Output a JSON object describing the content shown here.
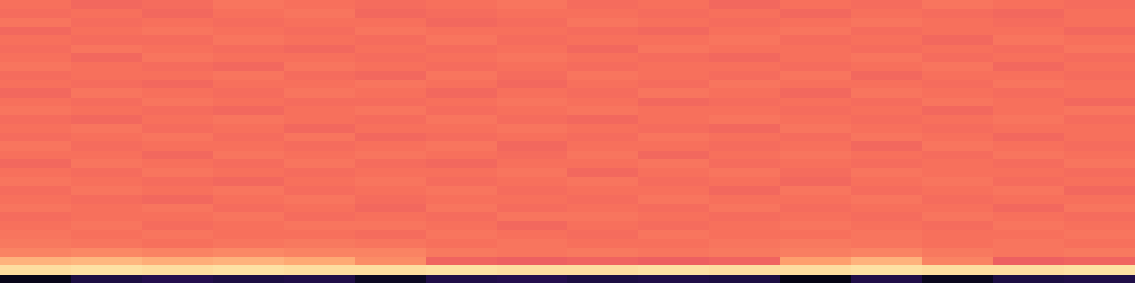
{
  "chart_data": {
    "type": "heatmap",
    "tick_labels": false,
    "zlim": [
      0,
      1
    ],
    "cells": [
      [
        0.7,
        0.68,
        0.69,
        0.71,
        0.7,
        0.69,
        0.7,
        0.71,
        0.69,
        0.7,
        0.68,
        0.7,
        0.69,
        0.71,
        0.7,
        0.69
      ],
      [
        0.69,
        0.7,
        0.68,
        0.7,
        0.71,
        0.68,
        0.69,
        0.7,
        0.7,
        0.69,
        0.7,
        0.68,
        0.7,
        0.69,
        0.68,
        0.7
      ],
      [
        0.71,
        0.69,
        0.7,
        0.69,
        0.7,
        0.7,
        0.68,
        0.69,
        0.71,
        0.7,
        0.69,
        0.7,
        0.71,
        0.7,
        0.69,
        0.7
      ],
      [
        0.68,
        0.7,
        0.71,
        0.7,
        0.69,
        0.71,
        0.7,
        0.7,
        0.69,
        0.68,
        0.7,
        0.71,
        0.69,
        0.7,
        0.7,
        0.68
      ],
      [
        0.7,
        0.69,
        0.69,
        0.71,
        0.7,
        0.69,
        0.71,
        0.69,
        0.7,
        0.7,
        0.71,
        0.69,
        0.7,
        0.68,
        0.71,
        0.7
      ],
      [
        0.69,
        0.71,
        0.7,
        0.69,
        0.68,
        0.7,
        0.69,
        0.7,
        0.68,
        0.71,
        0.7,
        0.7,
        0.69,
        0.7,
        0.69,
        0.71
      ],
      [
        0.7,
        0.68,
        0.71,
        0.7,
        0.7,
        0.69,
        0.7,
        0.71,
        0.7,
        0.69,
        0.68,
        0.7,
        0.71,
        0.69,
        0.7,
        0.69
      ],
      [
        0.71,
        0.7,
        0.69,
        0.68,
        0.71,
        0.7,
        0.69,
        0.7,
        0.69,
        0.7,
        0.7,
        0.69,
        0.7,
        0.71,
        0.68,
        0.7
      ],
      [
        0.69,
        0.7,
        0.7,
        0.71,
        0.69,
        0.68,
        0.71,
        0.69,
        0.71,
        0.7,
        0.69,
        0.71,
        0.68,
        0.7,
        0.7,
        0.69
      ],
      [
        0.7,
        0.69,
        0.68,
        0.7,
        0.7,
        0.71,
        0.7,
        0.68,
        0.7,
        0.69,
        0.71,
        0.7,
        0.7,
        0.69,
        0.71,
        0.7
      ],
      [
        0.68,
        0.71,
        0.7,
        0.69,
        0.71,
        0.7,
        0.68,
        0.7,
        0.69,
        0.71,
        0.7,
        0.68,
        0.71,
        0.7,
        0.69,
        0.7
      ],
      [
        0.7,
        0.69,
        0.71,
        0.7,
        0.69,
        0.69,
        0.7,
        0.71,
        0.7,
        0.68,
        0.69,
        0.7,
        0.69,
        0.71,
        0.7,
        0.68
      ],
      [
        0.71,
        0.7,
        0.69,
        0.68,
        0.7,
        0.71,
        0.69,
        0.7,
        0.71,
        0.7,
        0.7,
        0.69,
        0.7,
        0.68,
        0.7,
        0.71
      ],
      [
        0.69,
        0.68,
        0.7,
        0.71,
        0.7,
        0.69,
        0.71,
        0.69,
        0.68,
        0.7,
        0.71,
        0.7,
        0.69,
        0.7,
        0.71,
        0.69
      ],
      [
        0.7,
        0.71,
        0.69,
        0.7,
        0.68,
        0.7,
        0.7,
        0.71,
        0.7,
        0.69,
        0.68,
        0.71,
        0.7,
        0.69,
        0.7,
        0.7
      ],
      [
        0.69,
        0.7,
        0.71,
        0.69,
        0.71,
        0.68,
        0.69,
        0.7,
        0.69,
        0.71,
        0.7,
        0.69,
        0.71,
        0.7,
        0.68,
        0.7
      ],
      [
        0.71,
        0.69,
        0.7,
        0.7,
        0.69,
        0.7,
        0.71,
        0.68,
        0.7,
        0.7,
        0.69,
        0.7,
        0.68,
        0.71,
        0.7,
        0.69
      ],
      [
        0.7,
        0.7,
        0.68,
        0.71,
        0.7,
        0.71,
        0.7,
        0.69,
        0.71,
        0.68,
        0.7,
        0.71,
        0.7,
        0.69,
        0.71,
        0.7
      ],
      [
        0.68,
        0.71,
        0.7,
        0.69,
        0.71,
        0.69,
        0.68,
        0.7,
        0.7,
        0.71,
        0.69,
        0.7,
        0.69,
        0.7,
        0.69,
        0.71
      ],
      [
        0.7,
        0.69,
        0.71,
        0.7,
        0.69,
        0.7,
        0.7,
        0.71,
        0.68,
        0.7,
        0.71,
        0.69,
        0.71,
        0.7,
        0.7,
        0.69
      ],
      [
        0.71,
        0.7,
        0.69,
        0.68,
        0.7,
        0.71,
        0.69,
        0.7,
        0.71,
        0.69,
        0.7,
        0.68,
        0.7,
        0.71,
        0.69,
        0.7
      ],
      [
        0.69,
        0.71,
        0.7,
        0.71,
        0.69,
        0.7,
        0.71,
        0.69,
        0.7,
        0.7,
        0.68,
        0.71,
        0.69,
        0.7,
        0.71,
        0.68
      ],
      [
        0.7,
        0.69,
        0.68,
        0.7,
        0.71,
        0.69,
        0.7,
        0.7,
        0.69,
        0.71,
        0.7,
        0.7,
        0.71,
        0.69,
        0.7,
        0.7
      ],
      [
        0.71,
        0.7,
        0.71,
        0.69,
        0.7,
        0.68,
        0.71,
        0.69,
        0.7,
        0.69,
        0.71,
        0.69,
        0.7,
        0.7,
        0.68,
        0.71
      ],
      [
        0.69,
        0.7,
        0.7,
        0.71,
        0.69,
        0.7,
        0.69,
        0.71,
        0.71,
        0.7,
        0.69,
        0.7,
        0.69,
        0.71,
        0.7,
        0.69
      ],
      [
        0.7,
        0.71,
        0.69,
        0.7,
        0.71,
        0.71,
        0.7,
        0.68,
        0.7,
        0.69,
        0.7,
        0.71,
        0.7,
        0.69,
        0.71,
        0.7
      ],
      [
        0.71,
        0.7,
        0.71,
        0.7,
        0.7,
        0.69,
        0.71,
        0.7,
        0.69,
        0.71,
        0.7,
        0.7,
        0.71,
        0.7,
        0.7,
        0.71
      ],
      [
        0.72,
        0.71,
        0.7,
        0.71,
        0.72,
        0.71,
        0.7,
        0.71,
        0.7,
        0.7,
        0.71,
        0.72,
        0.71,
        0.7,
        0.71,
        0.7
      ],
      [
        0.74,
        0.75,
        0.74,
        0.75,
        0.74,
        0.74,
        0.72,
        0.71,
        0.72,
        0.71,
        0.72,
        0.73,
        0.74,
        0.72,
        0.71,
        0.72
      ],
      [
        0.84,
        0.85,
        0.83,
        0.84,
        0.82,
        0.76,
        0.67,
        0.66,
        0.67,
        0.66,
        0.67,
        0.8,
        0.84,
        0.74,
        0.66,
        0.67
      ],
      [
        0.93,
        0.94,
        0.93,
        0.94,
        0.93,
        0.93,
        0.94,
        0.93,
        0.93,
        0.94,
        0.93,
        0.93,
        0.94,
        0.93,
        0.93,
        0.94
      ],
      [
        0.04,
        0.12,
        0.14,
        0.12,
        0.13,
        0.06,
        0.13,
        0.14,
        0.12,
        0.13,
        0.12,
        0.03,
        0.13,
        0.05,
        0.12,
        0.13
      ]
    ]
  }
}
